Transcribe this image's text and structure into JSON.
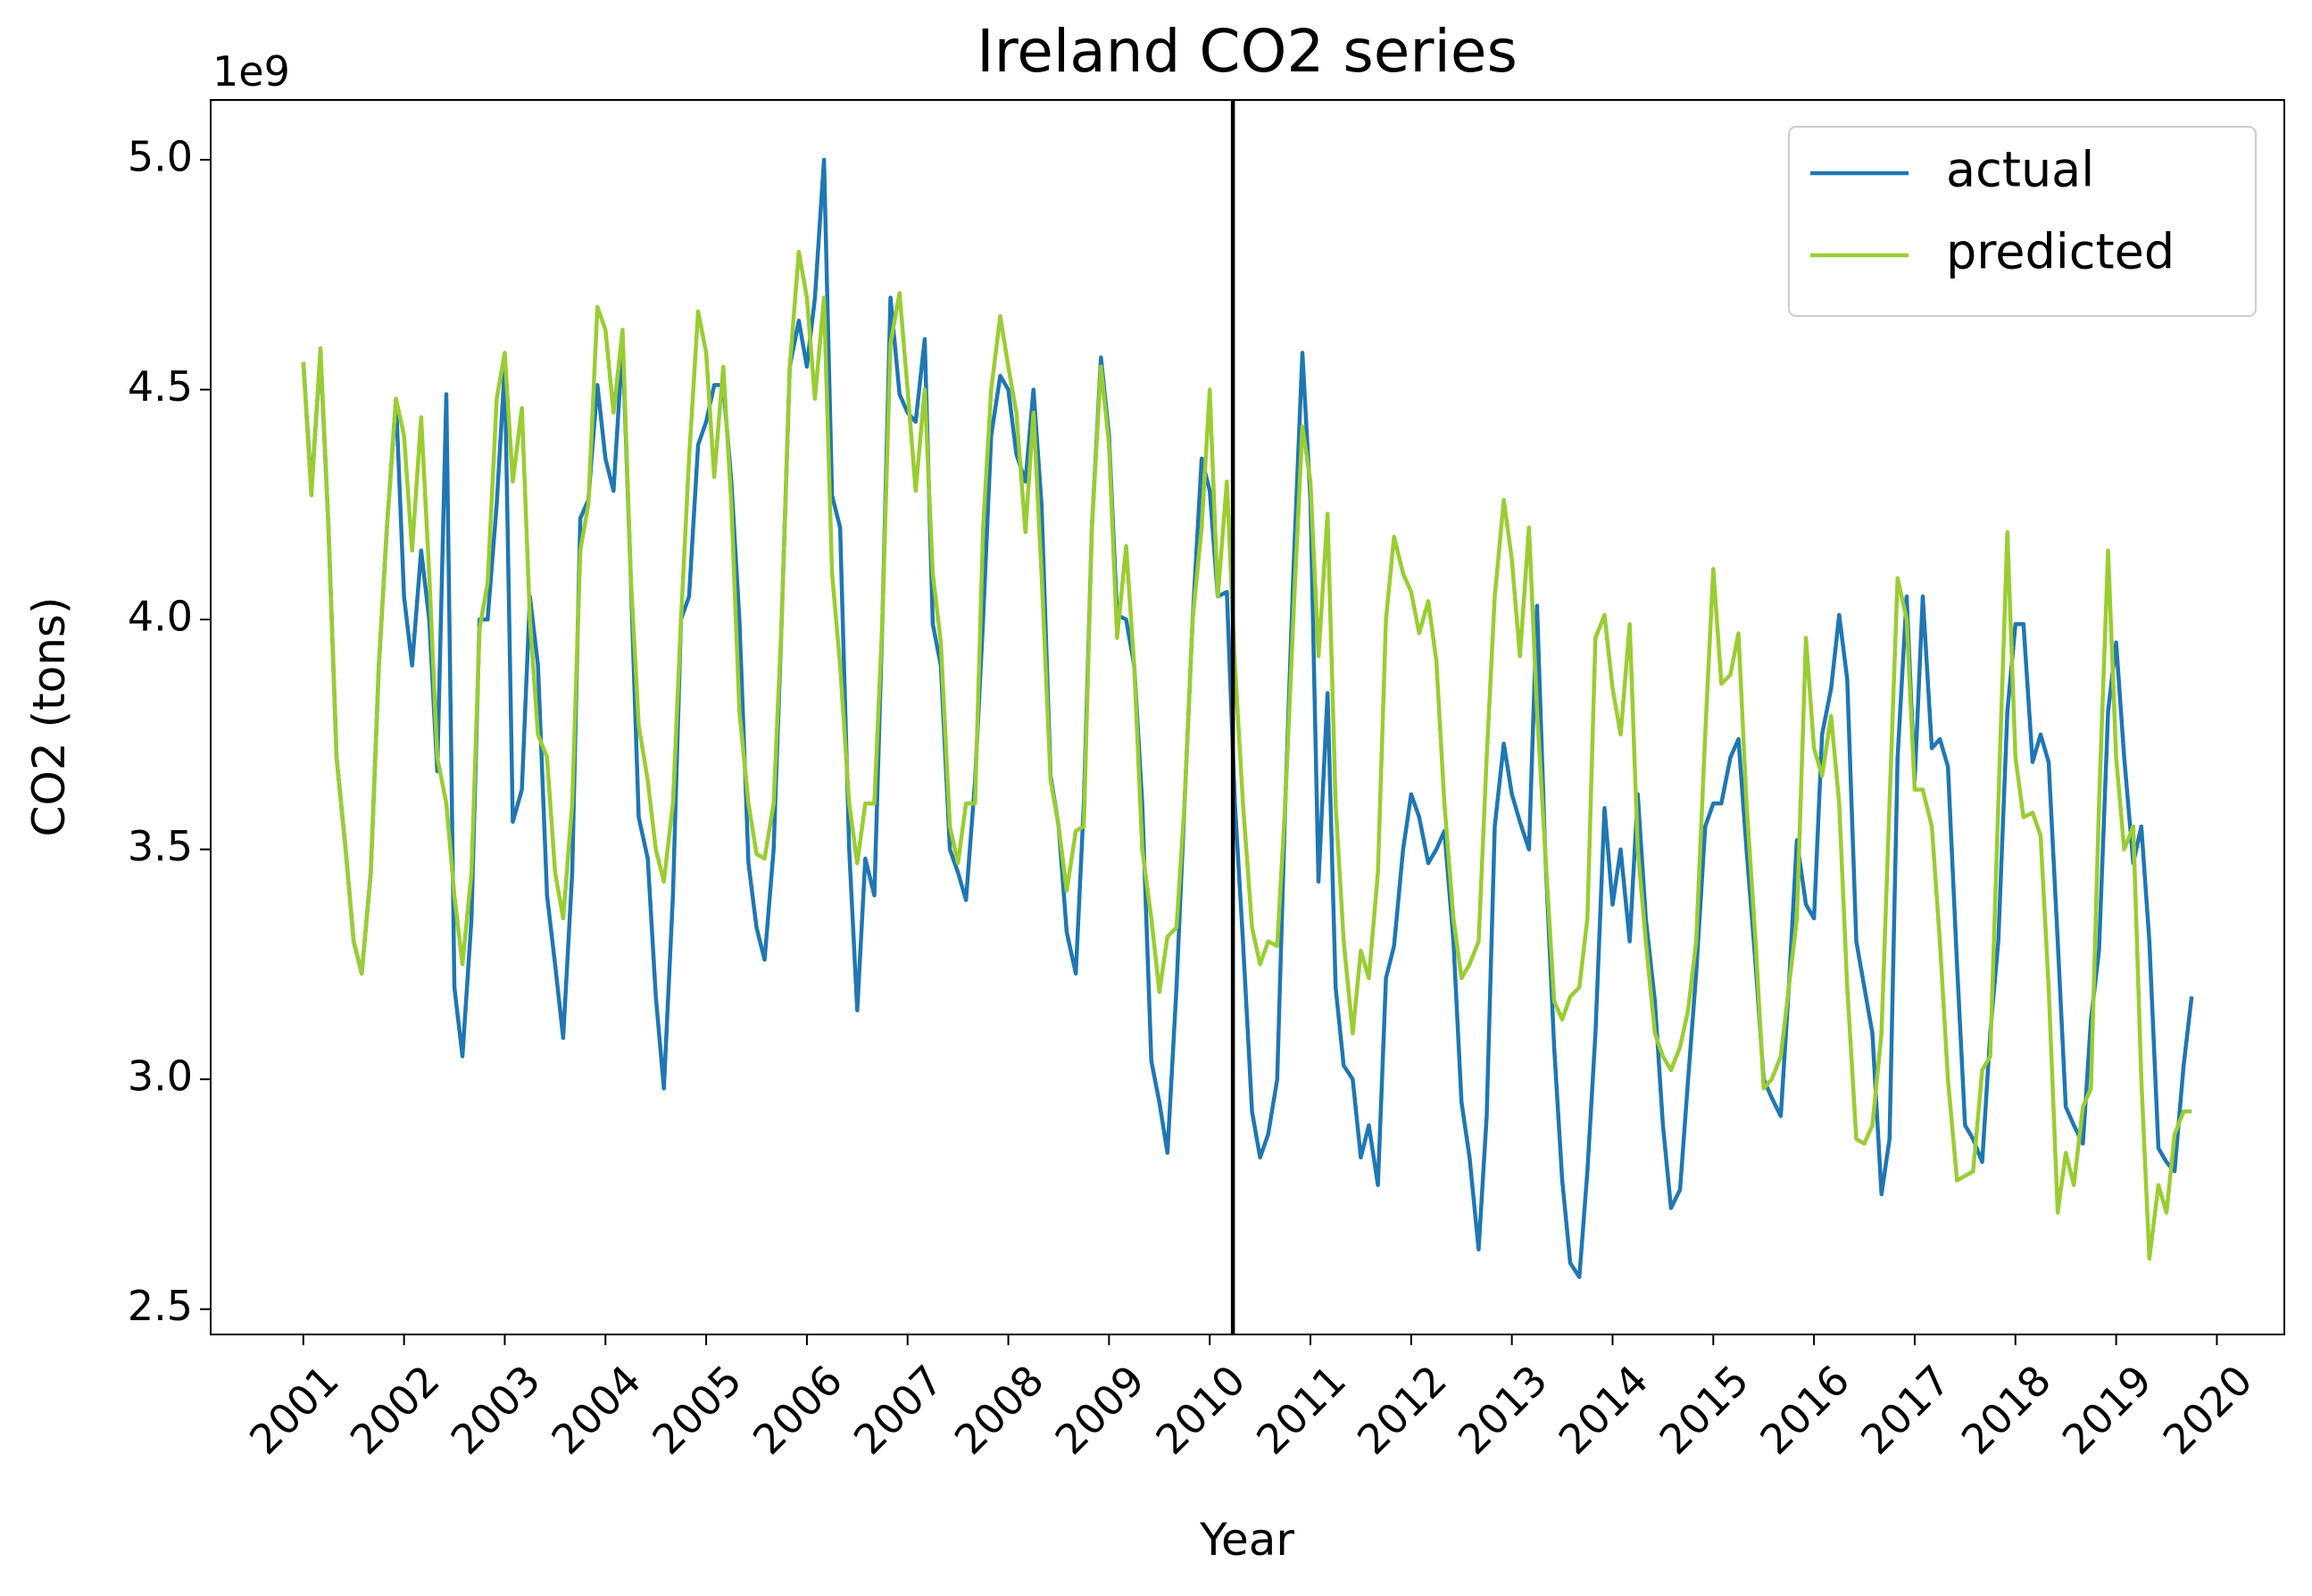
{
  "chart_data": {
    "type": "line",
    "title": "Ireland  CO2 series",
    "x_label": "Year",
    "y_label": "CO2 (tons)",
    "y_offset_text": "1e9",
    "x": [
      2001.0,
      2001.08,
      2001.17,
      2001.25,
      2001.33,
      2001.42,
      2001.5,
      2001.58,
      2001.67,
      2001.75,
      2001.83,
      2001.92,
      2002.0,
      2002.08,
      2002.17,
      2002.25,
      2002.33,
      2002.42,
      2002.5,
      2002.58,
      2002.67,
      2002.75,
      2002.83,
      2002.92,
      2003.0,
      2003.08,
      2003.17,
      2003.25,
      2003.33,
      2003.42,
      2003.5,
      2003.58,
      2003.67,
      2003.75,
      2003.83,
      2003.92,
      2004.0,
      2004.08,
      2004.17,
      2004.25,
      2004.33,
      2004.42,
      2004.5,
      2004.58,
      2004.67,
      2004.75,
      2004.83,
      2004.92,
      2005.0,
      2005.08,
      2005.17,
      2005.25,
      2005.33,
      2005.42,
      2005.5,
      2005.58,
      2005.67,
      2005.75,
      2005.83,
      2005.92,
      2006.0,
      2006.08,
      2006.17,
      2006.25,
      2006.33,
      2006.42,
      2006.5,
      2006.58,
      2006.67,
      2006.75,
      2006.83,
      2006.92,
      2007.0,
      2007.08,
      2007.17,
      2007.25,
      2007.33,
      2007.42,
      2007.5,
      2007.58,
      2007.67,
      2007.75,
      2007.83,
      2007.92,
      2008.0,
      2008.08,
      2008.17,
      2008.25,
      2008.33,
      2008.42,
      2008.5,
      2008.58,
      2008.67,
      2008.75,
      2008.83,
      2008.92,
      2009.0,
      2009.08,
      2009.17,
      2009.25,
      2009.33,
      2009.42,
      2009.5,
      2009.58,
      2009.67,
      2009.75,
      2009.83,
      2009.92,
      2010.0,
      2010.08,
      2010.17,
      2010.25,
      2010.33,
      2010.42,
      2010.5,
      2010.58,
      2010.67,
      2010.75,
      2010.83,
      2010.92,
      2011.0,
      2011.08,
      2011.17,
      2011.25,
      2011.33,
      2011.42,
      2011.5,
      2011.58,
      2011.67,
      2011.75,
      2011.83,
      2011.92,
      2012.0,
      2012.08,
      2012.17,
      2012.25,
      2012.33,
      2012.42,
      2012.5,
      2012.58,
      2012.67,
      2012.75,
      2012.83,
      2012.92,
      2013.0,
      2013.08,
      2013.17,
      2013.25,
      2013.33,
      2013.42,
      2013.5,
      2013.58,
      2013.67,
      2013.75,
      2013.83,
      2013.92,
      2014.0,
      2014.08,
      2014.17,
      2014.25,
      2014.33,
      2014.42,
      2014.5,
      2014.58,
      2014.67,
      2014.75,
      2014.83,
      2014.92,
      2015.0,
      2015.08,
      2015.17,
      2015.25,
      2015.33,
      2015.42,
      2015.5,
      2015.58,
      2015.67,
      2015.75,
      2015.83,
      2015.92,
      2016.0,
      2016.08,
      2016.17,
      2016.25,
      2016.33,
      2016.42,
      2016.5,
      2016.58,
      2016.67,
      2016.75,
      2016.83,
      2016.92,
      2017.0,
      2017.08,
      2017.17,
      2017.25,
      2017.33,
      2017.42,
      2017.5,
      2017.58,
      2017.67,
      2017.75,
      2017.83,
      2017.92,
      2018.0,
      2018.08,
      2018.17,
      2018.25,
      2018.33,
      2018.42,
      2018.5,
      2018.58,
      2018.67,
      2018.75,
      2018.83,
      2018.92,
      2019.0,
      2019.08,
      2019.17,
      2019.25,
      2019.33,
      2019.42,
      2019.5,
      2019.58,
      2019.67,
      2019.75
    ],
    "series": [
      {
        "name": "actual",
        "color": "#1f77b4",
        "values": [
          4.56,
          4.28,
          4.58,
          4.2,
          3.7,
          3.5,
          3.3,
          3.23,
          3.45,
          3.9,
          4.2,
          4.48,
          4.05,
          3.9,
          4.15,
          4.0,
          3.67,
          4.49,
          3.2,
          3.05,
          3.35,
          4.0,
          4.0,
          4.25,
          4.55,
          3.56,
          3.63,
          4.05,
          3.9,
          3.4,
          3.25,
          3.09,
          3.45,
          4.22,
          4.26,
          4.51,
          4.35,
          4.28,
          4.6,
          4.1,
          3.57,
          3.48,
          3.18,
          2.98,
          3.4,
          4.0,
          4.05,
          4.38,
          4.43,
          4.51,
          4.51,
          4.3,
          4.0,
          3.47,
          3.33,
          3.26,
          3.5,
          4.0,
          4.55,
          4.65,
          4.55,
          4.7,
          5.0,
          4.27,
          4.2,
          3.5,
          3.15,
          3.48,
          3.4,
          4.0,
          4.7,
          4.49,
          4.45,
          4.43,
          4.61,
          3.99,
          3.9,
          3.5,
          3.45,
          3.39,
          3.65,
          4.0,
          4.4,
          4.53,
          4.5,
          4.36,
          4.3,
          4.5,
          4.25,
          3.66,
          3.55,
          3.32,
          3.23,
          3.6,
          4.2,
          4.57,
          4.4,
          4.01,
          4.0,
          3.9,
          3.6,
          3.04,
          2.95,
          2.84,
          3.2,
          3.6,
          4.0,
          4.35,
          4.28,
          4.05,
          4.06,
          3.6,
          3.3,
          2.93,
          2.83,
          2.88,
          3.0,
          3.6,
          4.1,
          4.58,
          4.26,
          3.43,
          3.84,
          3.2,
          3.03,
          3.0,
          2.83,
          2.9,
          2.77,
          3.22,
          3.29,
          3.5,
          3.62,
          3.57,
          3.47,
          3.5,
          3.54,
          3.3,
          2.95,
          2.83,
          2.63,
          2.92,
          3.55,
          3.73,
          3.62,
          3.56,
          3.5,
          4.03,
          3.5,
          3.07,
          2.78,
          2.6,
          2.57,
          2.8,
          3.1,
          3.59,
          3.38,
          3.5,
          3.3,
          3.62,
          3.35,
          3.17,
          2.9,
          2.72,
          2.76,
          3.0,
          3.23,
          3.55,
          3.6,
          3.6,
          3.7,
          3.74,
          3.5,
          3.25,
          3.0,
          2.96,
          2.92,
          3.2,
          3.52,
          3.38,
          3.35,
          3.75,
          3.85,
          4.01,
          3.87,
          3.3,
          3.2,
          3.1,
          2.75,
          2.87,
          3.7,
          4.05,
          3.65,
          4.05,
          3.72,
          3.74,
          3.68,
          3.25,
          2.9,
          2.87,
          2.82,
          3.1,
          3.3,
          3.8,
          3.99,
          3.99,
          3.69,
          3.75,
          3.69,
          3.3,
          2.94,
          2.9,
          2.86,
          3.13,
          3.28,
          3.8,
          3.95,
          3.7,
          3.47,
          3.55,
          3.3,
          2.85,
          2.82,
          2.8,
          3.03,
          3.18
        ]
      },
      {
        "name": "predicted",
        "color": "#9acd32",
        "values": [
          4.56,
          4.27,
          4.59,
          4.2,
          3.7,
          3.5,
          3.3,
          3.23,
          3.45,
          3.9,
          4.2,
          4.48,
          4.4,
          4.15,
          4.44,
          4.1,
          3.7,
          3.6,
          3.4,
          3.25,
          3.45,
          3.98,
          4.08,
          4.48,
          4.58,
          4.3,
          4.46,
          4.0,
          3.75,
          3.7,
          3.45,
          3.35,
          3.6,
          4.15,
          4.25,
          4.68,
          4.63,
          4.45,
          4.63,
          4.1,
          3.77,
          3.65,
          3.5,
          3.43,
          3.6,
          4.0,
          4.35,
          4.67,
          4.58,
          4.31,
          4.55,
          4.25,
          3.8,
          3.6,
          3.49,
          3.48,
          3.6,
          4.0,
          4.55,
          4.8,
          4.7,
          4.48,
          4.7,
          4.1,
          3.9,
          3.6,
          3.47,
          3.6,
          3.6,
          4.0,
          4.6,
          4.71,
          4.5,
          4.28,
          4.5,
          4.1,
          3.95,
          3.55,
          3.47,
          3.6,
          3.6,
          4.2,
          4.5,
          4.66,
          4.55,
          4.45,
          4.19,
          4.45,
          4.1,
          3.65,
          3.55,
          3.41,
          3.54,
          3.55,
          4.2,
          4.55,
          4.38,
          3.96,
          4.16,
          3.9,
          3.5,
          3.35,
          3.19,
          3.31,
          3.33,
          3.6,
          4.0,
          4.2,
          4.5,
          4.05,
          4.3,
          3.9,
          3.6,
          3.33,
          3.25,
          3.3,
          3.29,
          3.6,
          4.0,
          4.42,
          4.3,
          3.92,
          4.23,
          3.6,
          3.3,
          3.1,
          3.28,
          3.22,
          3.45,
          4.0,
          4.18,
          4.1,
          4.06,
          3.97,
          4.04,
          3.91,
          3.6,
          3.35,
          3.22,
          3.25,
          3.3,
          3.7,
          4.05,
          4.26,
          4.13,
          3.92,
          4.2,
          3.8,
          3.5,
          3.17,
          3.13,
          3.18,
          3.2,
          3.35,
          3.96,
          4.01,
          3.85,
          3.75,
          3.99,
          3.5,
          3.3,
          3.1,
          3.05,
          3.02,
          3.07,
          3.15,
          3.3,
          3.75,
          4.11,
          3.86,
          3.88,
          3.97,
          3.6,
          3.3,
          2.98,
          3.0,
          3.05,
          3.2,
          3.35,
          3.96,
          3.72,
          3.66,
          3.79,
          3.6,
          3.2,
          2.87,
          2.86,
          2.9,
          3.1,
          3.6,
          4.09,
          4.0,
          3.63,
          3.63,
          3.55,
          3.3,
          3.0,
          2.78,
          2.79,
          2.8,
          3.02,
          3.05,
          3.6,
          4.19,
          3.7,
          3.57,
          3.58,
          3.53,
          3.2,
          2.71,
          2.84,
          2.77,
          2.94,
          2.98,
          3.6,
          4.15,
          3.7,
          3.5,
          3.55,
          3.0,
          2.61,
          2.77,
          2.71,
          2.88,
          2.93,
          2.93
        ]
      }
    ],
    "xlim": [
      2000.08,
      2020.67
    ],
    "ylim": [
      2.445,
      5.13
    ],
    "xticks": [
      2001,
      2002,
      2003,
      2004,
      2005,
      2006,
      2007,
      2008,
      2009,
      2010,
      2011,
      2012,
      2013,
      2014,
      2015,
      2016,
      2017,
      2018,
      2019,
      2020
    ],
    "yticks": [
      {
        "value": 2.5,
        "label": "2.5"
      },
      {
        "value": 3.0,
        "label": "3.0"
      },
      {
        "value": 3.5,
        "label": "3.5"
      },
      {
        "value": 4.0,
        "label": "4.0"
      },
      {
        "value": 4.5,
        "label": "4.5"
      },
      {
        "value": 5.0,
        "label": "5.0"
      }
    ],
    "vline": 2010.23,
    "vline_color": "#000000",
    "legend": "upper right",
    "grid": false
  }
}
